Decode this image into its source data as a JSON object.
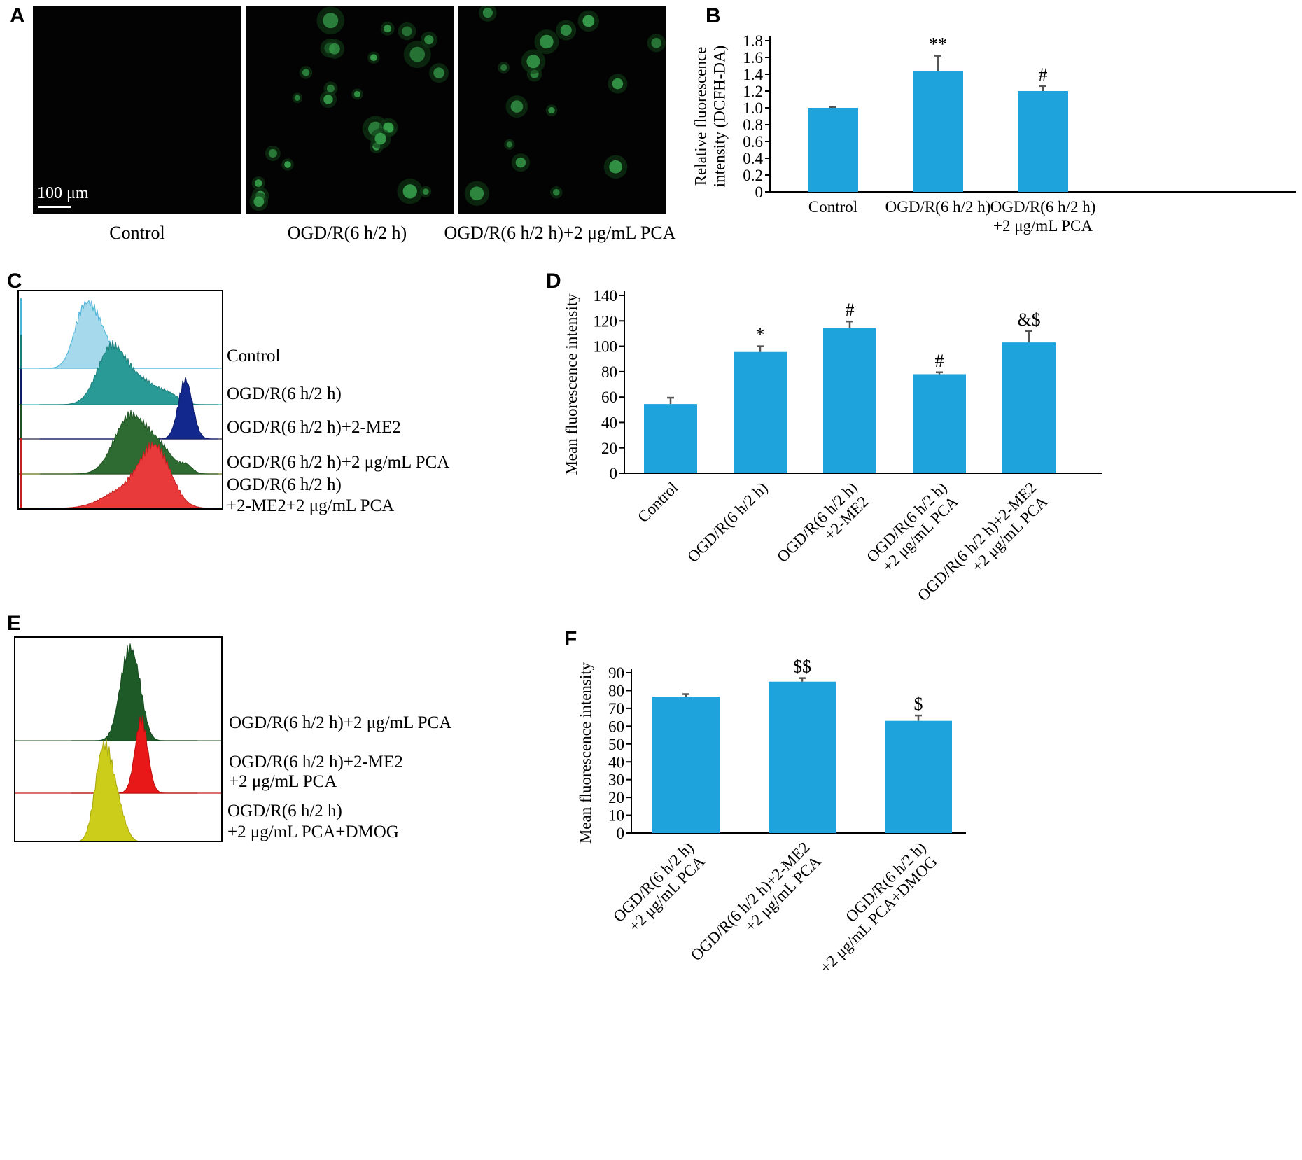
{
  "panels": {
    "A": {
      "letter": "A",
      "images": [
        {
          "label": "Control"
        },
        {
          "label": "OGD/R(6 h/2 h)"
        },
        {
          "label": "OGD/R(6 h/2 h)+2 μg/mL PCA"
        }
      ],
      "scale_bar": "100 μm"
    },
    "B": {
      "letter": "B"
    },
    "C": {
      "letter": "C",
      "labels": [
        "Control",
        "OGD/R(6 h/2 h)",
        "OGD/R(6 h/2 h)+2-ME2",
        "OGD/R(6 h/2 h)+2 μg/mL PCA",
        "OGD/R(6 h/2 h)",
        "+2-ME2+2 μg/mL PCA"
      ]
    },
    "D": {
      "letter": "D"
    },
    "E": {
      "letter": "E",
      "labels": [
        "OGD/R(6 h/2 h)+2 μg/mL PCA",
        "OGD/R(6 h/2 h)+2-ME2",
        "+2 μg/mL PCA",
        "OGD/R(6 h/2 h)",
        "+2 μg/mL PCA+DMOG"
      ]
    },
    "F": {
      "letter": "F"
    }
  },
  "colors": {
    "bar": "#1fa3dc",
    "error": "#555555"
  },
  "chart_data": [
    {
      "panel": "B",
      "type": "bar",
      "categories": [
        [
          "Control"
        ],
        [
          "OGD/R(6 h/2 h)"
        ],
        [
          "OGD/R(6 h/2 h)",
          "+2 μg/mL PCA"
        ]
      ],
      "values": [
        1.0,
        1.44,
        1.2
      ],
      "errors": [
        0.01,
        0.18,
        0.06
      ],
      "annotations": [
        "",
        "**",
        "#"
      ],
      "ylabel": [
        "Relative fluorescence",
        "intensity (DCFH-DA)"
      ],
      "ylim": [
        0,
        1.8
      ],
      "yticks": [
        "0",
        "0.2",
        "0.4",
        "0.6",
        "0.8",
        "1.0",
        "1.2",
        "1.4",
        "1.6",
        "1.8"
      ]
    },
    {
      "panel": "D",
      "type": "bar",
      "categories": [
        [
          "Control"
        ],
        [
          "OGD/R(6 h/2 h)"
        ],
        [
          "OGD/R(6 h/2 h)",
          "+2-ME2"
        ],
        [
          "OGD/R(6 h/2 h)",
          "+2 μg/mL PCA"
        ],
        [
          "OGD/R(6 h/2 h)+2-ME2",
          "+2 μg/mL PCA"
        ]
      ],
      "values": [
        54.5,
        95.5,
        114.5,
        78,
        103
      ],
      "errors": [
        5,
        4.5,
        5,
        1.5,
        9
      ],
      "annotations": [
        "",
        "*",
        "#",
        "#",
        "&$"
      ],
      "ylabel": [
        "Mean fluorescence intensity"
      ],
      "ylim": [
        0,
        140
      ],
      "yticks": [
        "0",
        "20",
        "40",
        "60",
        "80",
        "100",
        "120",
        "140"
      ]
    },
    {
      "panel": "F",
      "type": "bar",
      "categories": [
        [
          "OGD/R(6 h/2 h)",
          "+2 μg/mL PCA"
        ],
        [
          "OGD/R(6 h/2 h)+2-ME2",
          "+2 μg/mL PCA"
        ],
        [
          "OGD/R(6 h/2 h)",
          "+2 μg/mL PCA+DMOG"
        ]
      ],
      "values": [
        76.5,
        85,
        63
      ],
      "errors": [
        1.5,
        2,
        3
      ],
      "annotations": [
        "",
        "$$",
        "$"
      ],
      "ylabel": [
        "Mean fluorescence intensity"
      ],
      "ylim": [
        0,
        90
      ],
      "yticks": [
        "0",
        "10",
        "20",
        "30",
        "40",
        "50",
        "60",
        "70",
        "80",
        "90"
      ]
    }
  ]
}
